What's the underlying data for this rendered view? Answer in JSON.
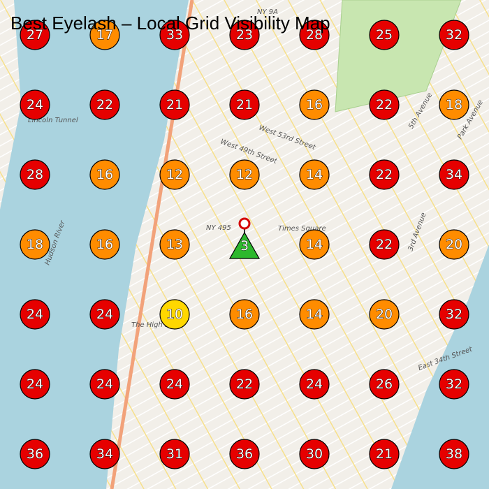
{
  "title": "Best Eyelash – Local Grid Visibility Map",
  "grid": [
    [
      {
        "value": 27
      },
      {
        "value": 17
      },
      {
        "value": 33
      },
      {
        "value": 23
      },
      {
        "value": 28
      },
      {
        "value": 25
      },
      {
        "value": 32
      }
    ],
    [
      {
        "value": 24
      },
      {
        "value": 22
      },
      {
        "value": 21
      },
      {
        "value": 21
      },
      {
        "value": 16
      },
      {
        "value": 22
      },
      {
        "value": 18
      }
    ],
    [
      {
        "value": 28
      },
      {
        "value": 16
      },
      {
        "value": 12
      },
      {
        "value": 12
      },
      {
        "value": 14
      },
      {
        "value": 22
      },
      {
        "value": 34
      }
    ],
    [
      {
        "value": 18
      },
      {
        "value": 16
      },
      {
        "value": 13
      },
      {
        "value": 3,
        "marker": "triangle"
      },
      {
        "value": 14
      },
      {
        "value": 22
      },
      {
        "value": 20
      }
    ],
    [
      {
        "value": 24
      },
      {
        "value": 24
      },
      {
        "value": 10
      },
      {
        "value": 16
      },
      {
        "value": 14
      },
      {
        "value": 20
      },
      {
        "value": 32
      }
    ],
    [
      {
        "value": 24
      },
      {
        "value": 24
      },
      {
        "value": 24
      },
      {
        "value": 22
      },
      {
        "value": 24
      },
      {
        "value": 26
      },
      {
        "value": 32
      }
    ],
    [
      {
        "value": 36
      },
      {
        "value": 34
      },
      {
        "value": 31
      },
      {
        "value": 36
      },
      {
        "value": 30
      },
      {
        "value": 21
      },
      {
        "value": 38
      }
    ]
  ],
  "map_labels": [
    "Times Square",
    "Lincoln Tunnel",
    "The High Line",
    "Hudson River",
    "West 53rd Street",
    "West 49th Street",
    "Park Avenue",
    "5th Avenue",
    "3rd Avenue",
    "East 34th Street",
    "NY 495",
    "NY 9A"
  ]
}
